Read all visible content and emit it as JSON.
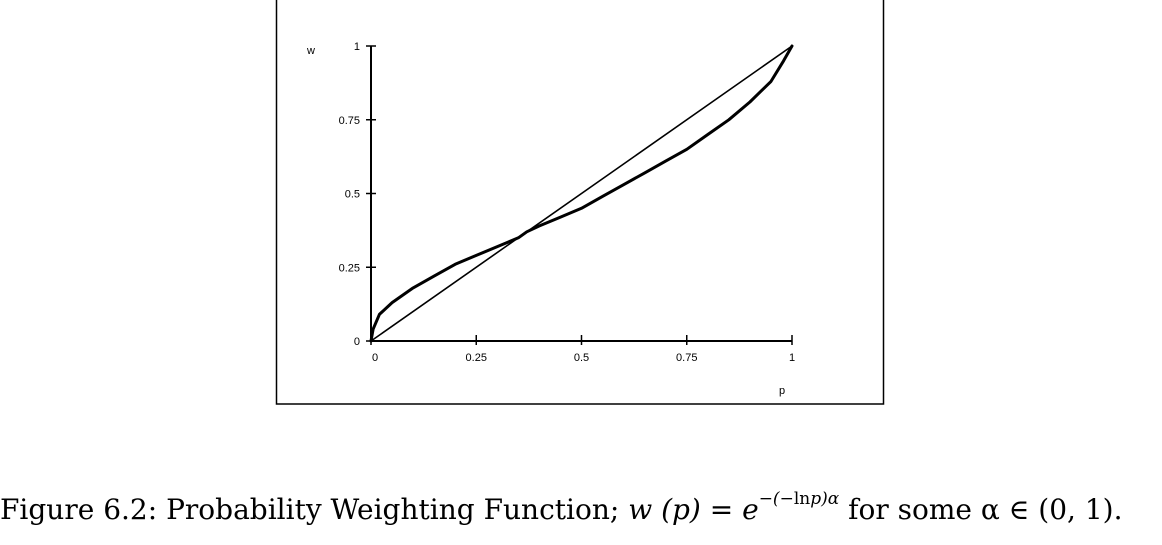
{
  "chart_data": {
    "type": "line",
    "title": "",
    "xlabel": "p",
    "ylabel": "w",
    "xlim": [
      0,
      1
    ],
    "ylim": [
      0,
      1
    ],
    "x_ticks": [
      "0",
      "0.25",
      "0.5",
      "0.75",
      "1"
    ],
    "y_ticks": [
      "0",
      "0.25",
      "0.5",
      "0.75",
      "1"
    ],
    "x_tick_values": [
      0,
      0.25,
      0.5,
      0.75,
      1
    ],
    "y_tick_values": [
      0,
      0.25,
      0.5,
      0.75,
      1
    ],
    "grid": false,
    "series": [
      {
        "style": "thin",
        "x": [
          0,
          1
        ],
        "y": [
          0,
          1
        ]
      },
      {
        "style": "thick",
        "x": [
          0,
          0.005,
          0.02,
          0.05,
          0.1,
          0.15,
          0.2,
          0.25,
          0.3,
          0.35,
          0.37,
          0.4,
          0.45,
          0.5,
          0.55,
          0.6,
          0.65,
          0.7,
          0.75,
          0.8,
          0.85,
          0.9,
          0.95,
          0.98,
          1
        ],
        "y": [
          0,
          0.04,
          0.09,
          0.13,
          0.18,
          0.22,
          0.26,
          0.29,
          0.32,
          0.35,
          0.37,
          0.39,
          0.42,
          0.45,
          0.49,
          0.53,
          0.57,
          0.61,
          0.65,
          0.7,
          0.75,
          0.81,
          0.88,
          0.95,
          1
        ]
      }
    ]
  },
  "caption": {
    "label": "Figure 6.2:",
    "text": "Probability Weighting Function;",
    "formula_lhs": "w (p) = e",
    "formula_exp_pre": "−(−",
    "formula_exp_ln": "ln",
    "formula_exp_post": "p)",
    "formula_exp_alpha": "α",
    "formula_tail": "for some α ∈ (0, 1)."
  }
}
